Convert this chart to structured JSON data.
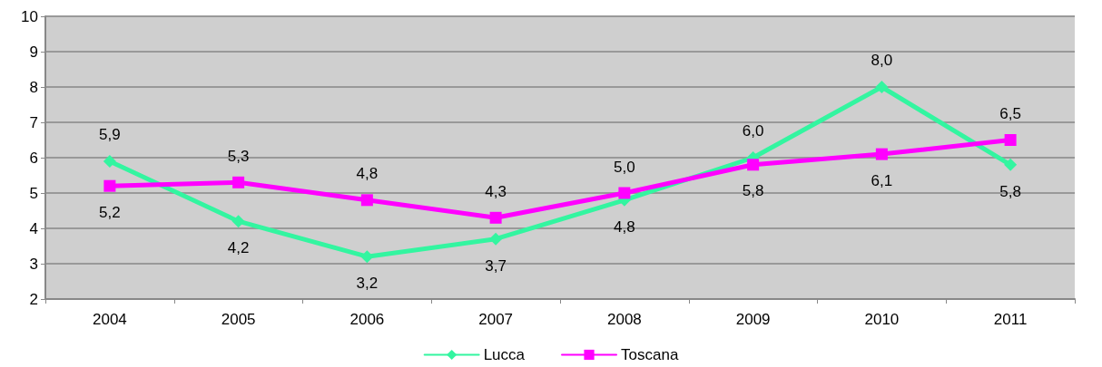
{
  "chart_data": {
    "type": "line",
    "categories": [
      "2004",
      "2005",
      "2006",
      "2007",
      "2008",
      "2009",
      "2010",
      "2011"
    ],
    "series": [
      {
        "name": "Lucca",
        "color": "#33f5a0",
        "marker": "diamond",
        "values": [
          5.9,
          4.2,
          3.2,
          3.7,
          4.8,
          6.0,
          8.0,
          5.8
        ],
        "value_labels": [
          "5,9",
          "4,2",
          "3,2",
          "3,7",
          "4,8",
          "6,0",
          "8,0",
          "5,8"
        ]
      },
      {
        "name": "Toscana",
        "color": "#ff00ff",
        "marker": "square",
        "values": [
          5.2,
          5.3,
          4.8,
          4.3,
          5.0,
          5.8,
          6.1,
          6.5
        ],
        "value_labels": [
          "5,2",
          "5,3",
          "4,8",
          "4,3",
          "5,0",
          "5,8",
          "6,1",
          "6,5"
        ]
      }
    ],
    "ylim": [
      2,
      10
    ],
    "yticks": [
      2,
      3,
      4,
      5,
      6,
      7,
      8,
      9,
      10
    ],
    "grid": "y",
    "legend": "bottom",
    "line_style": "solid"
  }
}
